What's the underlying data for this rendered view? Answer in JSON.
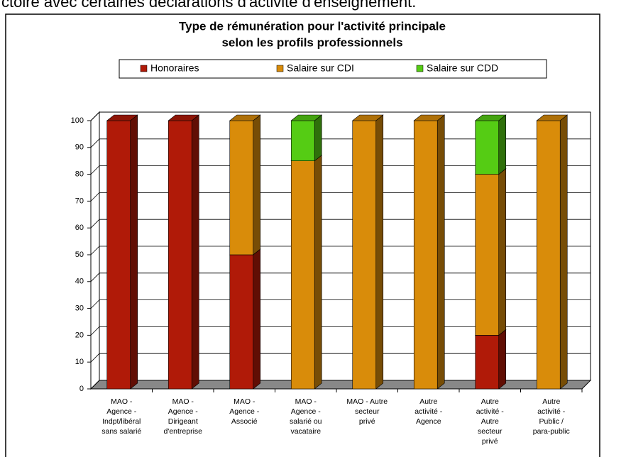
{
  "caption": "ctoire avec certaines déclarations d'activité d'enseignement.",
  "chart_data": {
    "type": "bar3d_stacked",
    "title": [
      "Type de rémunération pour l'activité principale",
      "selon les profils professionnels"
    ],
    "categories": [
      [
        "MAO -",
        "Agence -",
        "Indpt/libéral",
        "sans salarié"
      ],
      [
        "MAO -",
        "Agence -",
        "Dirigeant",
        "d'entreprise"
      ],
      [
        "MAO -",
        "Agence -",
        "Associé"
      ],
      [
        "MAO -",
        "Agence -",
        "salarié ou",
        "vacataire"
      ],
      [
        "MAO - Autre",
        "secteur",
        "privé"
      ],
      [
        "Autre",
        "activité -",
        "Agence"
      ],
      [
        "Autre",
        "activité -",
        "Autre",
        "secteur",
        "privé"
      ],
      [
        "Autre",
        "activité -",
        "Public /",
        "para-public"
      ]
    ],
    "series": [
      {
        "name": "Honoraires",
        "color": "#b01a08",
        "values": [
          100,
          100,
          50,
          0,
          0,
          0,
          20,
          0
        ]
      },
      {
        "name": "Salaire sur CDI",
        "color": "#d98c0a",
        "values": [
          0,
          0,
          50,
          85,
          100,
          100,
          60,
          100
        ]
      },
      {
        "name": "Salaire sur CDD",
        "color": "#55cc14",
        "values": [
          0,
          0,
          0,
          15,
          0,
          0,
          20,
          0
        ]
      }
    ],
    "ylim": [
      0,
      100
    ],
    "yticks": [
      0,
      10,
      20,
      30,
      40,
      50,
      60,
      70,
      80,
      90,
      100
    ],
    "grid": true,
    "legend": "top"
  }
}
